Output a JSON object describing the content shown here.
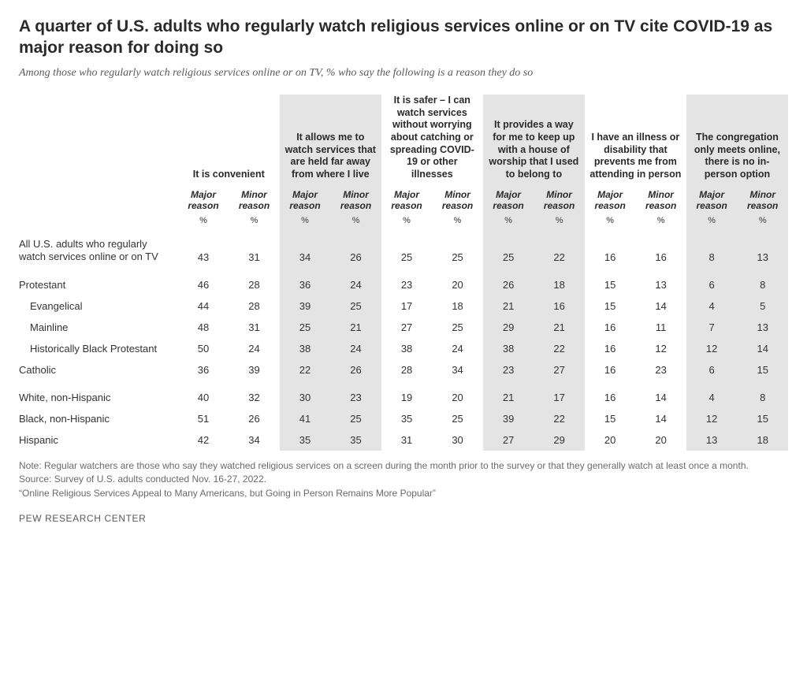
{
  "title": "A quarter of U.S. adults who regularly watch religious services online or on TV cite COVID-19 as major reason for doing so",
  "subtitle": "Among those who regularly watch religious services online or on TV, % who say the following is a reason they do so",
  "style": {
    "highlight_bg": "#e4e4e4",
    "text_color": "#333333",
    "muted_color": "#6a6a6a",
    "title_fontsize": 21,
    "body_fontsize": 13
  },
  "columns": [
    {
      "label": "It is convenient",
      "highlight": false
    },
    {
      "label": "It allows me to watch services that are held far away from where I live",
      "highlight": true
    },
    {
      "label": "It is safer – I can watch services without worrying about catching or spreading COVID-19 or other illnesses",
      "highlight": false
    },
    {
      "label": "It provides a way for me to keep up with a house of worship that I used to belong to",
      "highlight": true
    },
    {
      "label": "I have an illness or disability that prevents me from attending in person",
      "highlight": false
    },
    {
      "label": "The congregation only meets online, there is no in-person option",
      "highlight": true
    }
  ],
  "subheads": {
    "major": "Major reason",
    "minor": "Minor reason",
    "pct": "%"
  },
  "rows": [
    {
      "label": "All U.S. adults who regularly watch services online or on TV",
      "indent": 0,
      "gap": false,
      "vals": [
        43,
        31,
        34,
        26,
        25,
        25,
        25,
        22,
        16,
        16,
        8,
        13
      ]
    },
    {
      "label": "Protestant",
      "indent": 0,
      "gap": true,
      "vals": [
        46,
        28,
        36,
        24,
        23,
        20,
        26,
        18,
        15,
        13,
        6,
        8
      ]
    },
    {
      "label": "Evangelical",
      "indent": 1,
      "gap": false,
      "vals": [
        44,
        28,
        39,
        25,
        17,
        18,
        21,
        16,
        15,
        14,
        4,
        5
      ]
    },
    {
      "label": "Mainline",
      "indent": 1,
      "gap": false,
      "vals": [
        48,
        31,
        25,
        21,
        27,
        25,
        29,
        21,
        16,
        11,
        7,
        13
      ]
    },
    {
      "label": "Historically Black Protestant",
      "indent": 1,
      "gap": false,
      "vals": [
        50,
        24,
        38,
        24,
        38,
        24,
        38,
        22,
        16,
        12,
        12,
        14
      ]
    },
    {
      "label": "Catholic",
      "indent": 0,
      "gap": false,
      "vals": [
        36,
        39,
        22,
        26,
        28,
        34,
        23,
        27,
        16,
        23,
        6,
        15
      ]
    },
    {
      "label": "White, non-Hispanic",
      "indent": 0,
      "gap": true,
      "vals": [
        40,
        32,
        30,
        23,
        19,
        20,
        21,
        17,
        16,
        14,
        4,
        8
      ]
    },
    {
      "label": "Black, non-Hispanic",
      "indent": 0,
      "gap": false,
      "vals": [
        51,
        26,
        41,
        25,
        35,
        25,
        39,
        22,
        15,
        14,
        12,
        15
      ]
    },
    {
      "label": "Hispanic",
      "indent": 0,
      "gap": false,
      "vals": [
        42,
        34,
        35,
        35,
        31,
        30,
        27,
        29,
        20,
        20,
        13,
        18
      ]
    }
  ],
  "notes": {
    "note": "Note: Regular watchers are those who say they watched religious services on a screen during the month prior to the survey or that they generally watch at least once a month.",
    "source": "Source: Survey of U.S. adults conducted Nov. 16-27, 2022.",
    "report": "“Online Religious Services Appeal to Many Americans, but Going in Person Remains More Popular”"
  },
  "attribution": "PEW RESEARCH CENTER"
}
